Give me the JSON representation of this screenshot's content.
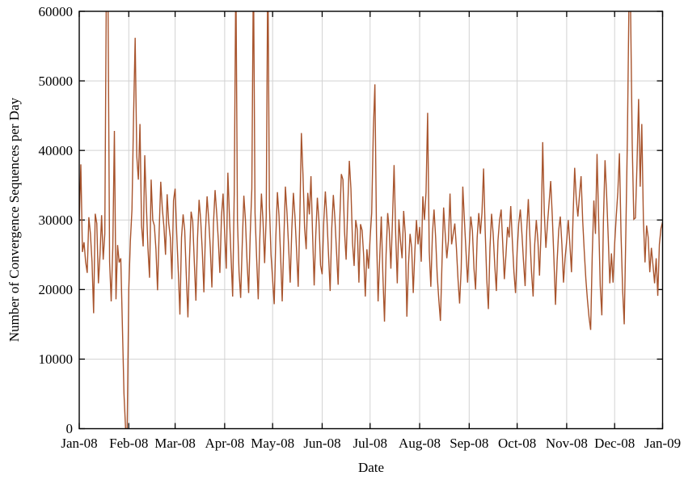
{
  "figure": {
    "background": "#ffffff",
    "line_color": "#a8542d",
    "grid_color": "#d2d2d2",
    "axis_color": "#000000",
    "text_color": "#000000"
  },
  "chart_data": {
    "type": "line",
    "title": "",
    "xlabel": "Date",
    "ylabel": "Number of Convergence Sequences per Day",
    "legend": null,
    "grid": true,
    "ylim": [
      0,
      60000
    ],
    "y_tick_values": [
      0,
      10000,
      20000,
      30000,
      40000,
      50000,
      60000
    ],
    "y_tick_labels": [
      "0",
      "10000",
      "20000",
      "30000",
      "40000",
      "50000",
      "60000"
    ],
    "x_tick_labels": [
      "Jan-08",
      "Feb-08",
      "Mar-08",
      "Apr-08",
      "May-08",
      "Jun-08",
      "Jul-08",
      "Aug-08",
      "Sep-08",
      "Oct-08",
      "Nov-08",
      "Dec-08",
      "Jan-09"
    ],
    "x_tick_day_offsets": [
      0,
      31,
      60,
      91,
      121,
      152,
      182,
      213,
      244,
      274,
      305,
      335,
      365
    ],
    "x_start": "Jan-08",
    "x_end": "Jan-09",
    "x_unit": "day",
    "values": [
      29800,
      38000,
      25400,
      26800,
      24000,
      22400,
      30400,
      28000,
      24000,
      16600,
      30900,
      29500,
      20900,
      25000,
      30700,
      24300,
      28000,
      65000,
      62000,
      24000,
      18300,
      26000,
      42800,
      18600,
      26400,
      23900,
      24500,
      14800,
      5000,
      0,
      0,
      20000,
      27000,
      31500,
      45000,
      56200,
      39200,
      35800,
      43800,
      29200,
      26200,
      39300,
      32100,
      25900,
      21700,
      35800,
      30000,
      29200,
      25800,
      19900,
      28300,
      35500,
      31600,
      29000,
      25000,
      33700,
      29500,
      27500,
      21500,
      32800,
      34500,
      28000,
      22500,
      16400,
      27500,
      30800,
      28500,
      22000,
      16000,
      24500,
      31200,
      29800,
      24000,
      18400,
      27300,
      32900,
      30000,
      25500,
      19600,
      28400,
      33400,
      30100,
      26000,
      20300,
      29500,
      34300,
      31000,
      27200,
      22400,
      30500,
      33800,
      28000,
      23000,
      36800,
      30500,
      24600,
      19000,
      34000,
      66000,
      30000,
      22500,
      18800,
      26500,
      33500,
      30000,
      24000,
      19500,
      28000,
      34500,
      67000,
      31000,
      24500,
      18600,
      27400,
      33800,
      29800,
      23800,
      30500,
      68000,
      32000,
      25000,
      21500,
      17900,
      27500,
      34000,
      30600,
      24800,
      18300,
      26900,
      34800,
      31000,
      26200,
      21000,
      28600,
      33900,
      30400,
      25600,
      20400,
      30000,
      42500,
      36500,
      28900,
      25800,
      33900,
      30800,
      36300,
      28000,
      20600,
      27800,
      33200,
      29800,
      23500,
      22200,
      29800,
      34100,
      30200,
      24900,
      19800,
      28800,
      33600,
      30100,
      25400,
      20700,
      29900,
      36600,
      35800,
      28300,
      24300,
      31800,
      38500,
      34500,
      26700,
      23400,
      30000,
      28600,
      21000,
      29400,
      28500,
      24800,
      19000,
      25800,
      23000,
      27400,
      31000,
      42800,
      49500,
      28000,
      18300,
      24500,
      30500,
      22000,
      15400,
      25000,
      31000,
      28500,
      23000,
      30000,
      37900,
      28000,
      20900,
      30100,
      27000,
      24500,
      31300,
      28000,
      16100,
      23500,
      28000,
      26000,
      19500,
      25500,
      30000,
      26500,
      29000,
      24000,
      33400,
      30000,
      34000,
      45400,
      25500,
      20400,
      28000,
      31500,
      27500,
      22000,
      18500,
      15500,
      24000,
      31800,
      28000,
      24500,
      27000,
      33800,
      26500,
      28000,
      29500,
      26000,
      21500,
      18000,
      23000,
      34800,
      30000,
      25500,
      21000,
      26000,
      30500,
      28500,
      23000,
      20000,
      27500,
      31000,
      28000,
      31000,
      37400,
      28500,
      21500,
      17200,
      26000,
      30900,
      28000,
      23500,
      19800,
      27000,
      30000,
      31500,
      26500,
      21500,
      25000,
      29000,
      27500,
      32000,
      27000,
      22500,
      19500,
      25500,
      29500,
      31500,
      28000,
      24000,
      20500,
      28500,
      33000,
      27500,
      22500,
      19000,
      26500,
      30000,
      27000,
      22000,
      28500,
      41200,
      31000,
      26000,
      29500,
      32500,
      35600,
      30500,
      24500,
      17800,
      24000,
      28500,
      30500,
      26500,
      21000,
      24500,
      27000,
      30000,
      26500,
      22500,
      30500,
      37500,
      33000,
      30500,
      33500,
      36300,
      30000,
      25500,
      21500,
      18500,
      16000,
      14200,
      25000,
      32800,
      28000,
      39500,
      30000,
      20500,
      16300,
      30000,
      38600,
      33500,
      27500,
      20900,
      25200,
      21000,
      26500,
      30500,
      34000,
      39600,
      28000,
      20000,
      15000,
      28000,
      42000,
      62000,
      60000,
      41000,
      30100,
      30300,
      38000,
      47400,
      34800,
      43800,
      30000,
      23900,
      29200,
      27500,
      22500,
      26000,
      23500,
      20900,
      24500,
      19100,
      26500,
      28800,
      29700
    ]
  }
}
